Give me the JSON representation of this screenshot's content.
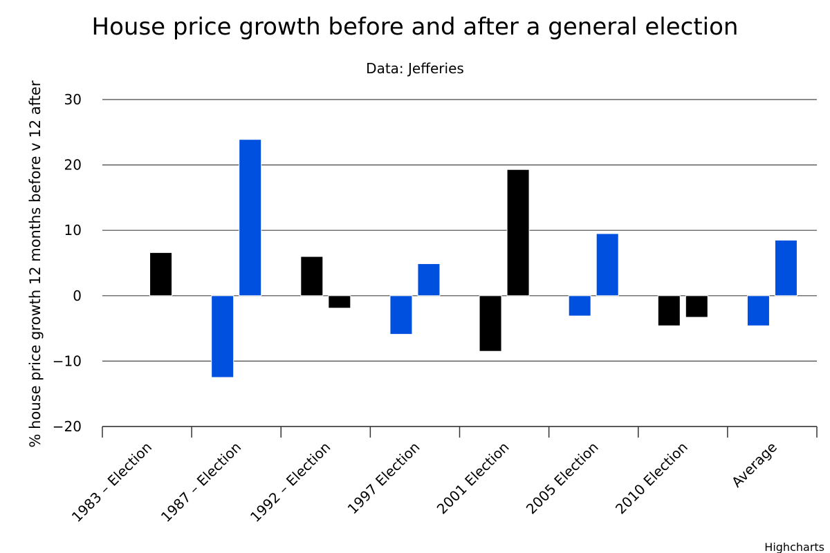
{
  "chart_data": {
    "type": "bar",
    "title": "House price growth before and after a general election",
    "subtitle": "Data: Jefferies",
    "ylabel": "% house price growth 12 months before v 12 after",
    "xlabel": "",
    "ylim": [
      -20,
      30
    ],
    "yticks": [
      30,
      20,
      10,
      0,
      -10,
      -20
    ],
    "grid": true,
    "credits": "Highcharts",
    "categories": [
      "1983 – Election",
      "1987 – Election",
      "1992 – Election",
      "1997 Election",
      "2001 Election",
      "2005 Election",
      "2010 Election",
      "Average"
    ],
    "series": [
      {
        "values": [
          0,
          -12.5,
          6,
          -5.9,
          -8.5,
          -3.1,
          -4.6,
          -4.6
        ],
        "colors": [
          "#000000",
          "#0050e0",
          "#000000",
          "#0050e0",
          "#000000",
          "#0050e0",
          "#000000",
          "#0050e0"
        ]
      },
      {
        "values": [
          6.6,
          23.9,
          -1.9,
          4.9,
          19.3,
          9.5,
          -3.3,
          8.5
        ],
        "colors": [
          "#000000",
          "#0050e0",
          "#000000",
          "#0050e0",
          "#000000",
          "#0050e0",
          "#000000",
          "#0050e0"
        ]
      }
    ]
  }
}
